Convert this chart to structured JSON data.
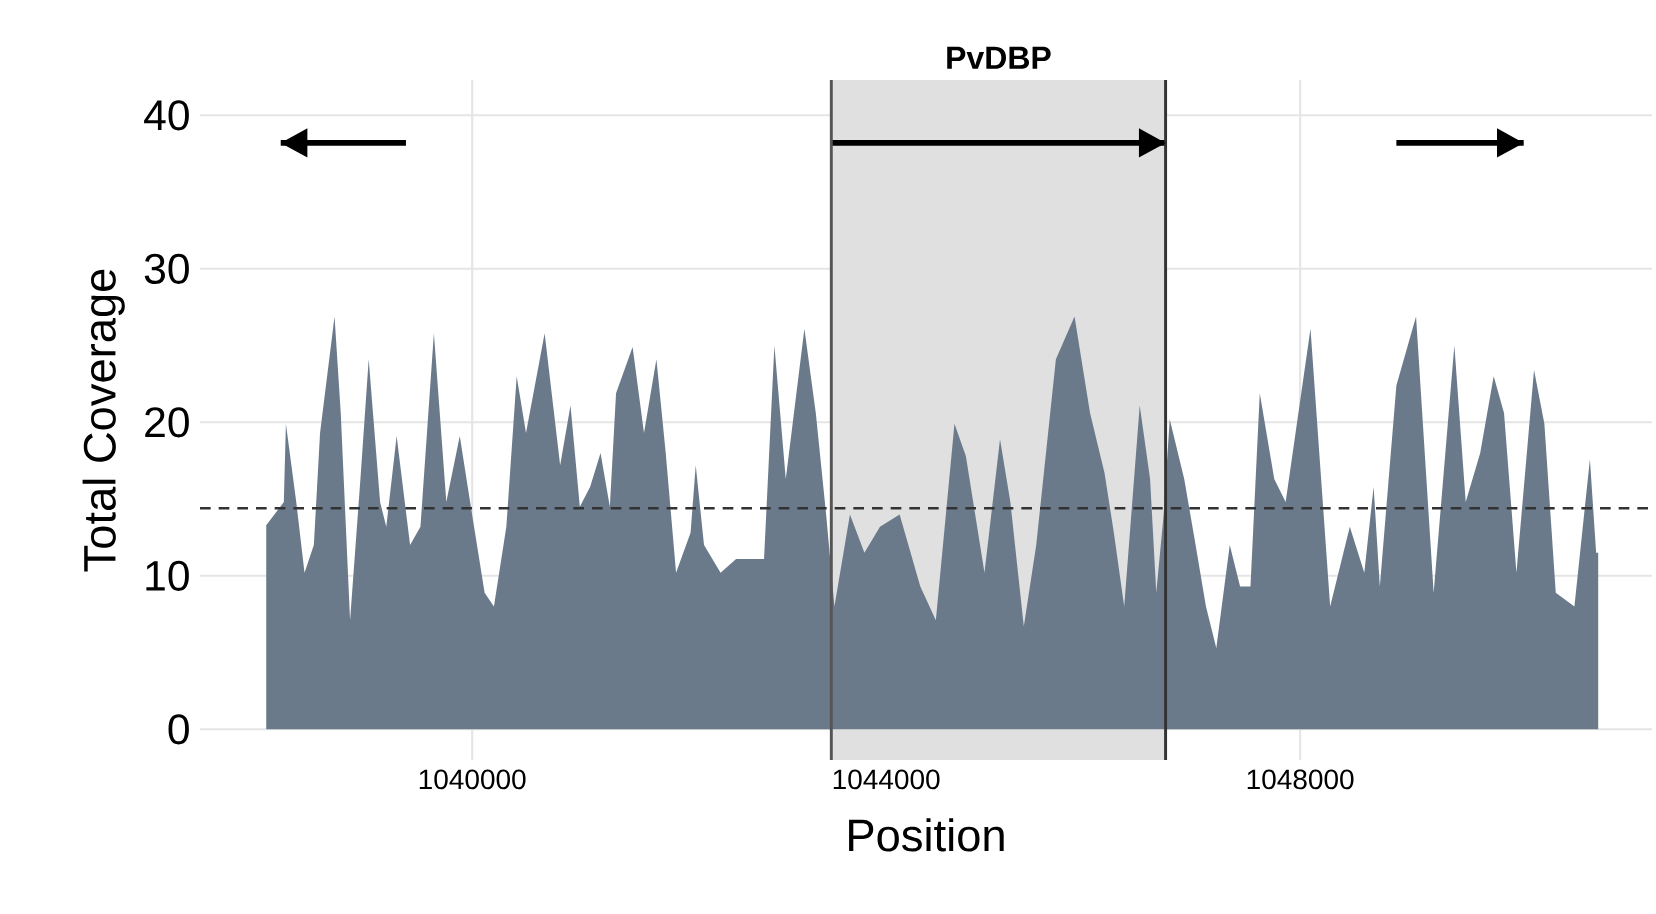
{
  "chart_data": {
    "type": "area",
    "xlabel": "Position",
    "ylabel": "Total Coverage",
    "xlim": [
      1037370,
      1051400
    ],
    "ylim": [
      -2,
      42.3
    ],
    "xticks": [
      1040000,
      1044000,
      1048000
    ],
    "yticks": [
      0,
      10,
      20,
      30,
      40
    ],
    "grid": true,
    "marker": "none",
    "series": [
      {
        "color": "#6b7a8b",
        "x": [
          1038010,
          1038180,
          1038200,
          1038300,
          1038380,
          1038470,
          1038530,
          1038670,
          1038730,
          1038820,
          1038920,
          1039000,
          1039110,
          1039170,
          1039270,
          1039400,
          1039500,
          1039630,
          1039750,
          1039880,
          1039980,
          1040120,
          1040210,
          1040330,
          1040430,
          1040520,
          1040700,
          1040850,
          1040950,
          1041040,
          1041140,
          1041240,
          1041330,
          1041390,
          1041550,
          1041660,
          1041780,
          1041870,
          1041970,
          1042110,
          1042160,
          1042240,
          1042400,
          1042550,
          1042820,
          1042920,
          1043030,
          1043210,
          1043320,
          1043420,
          1043500,
          1043650,
          1043790,
          1043940,
          1044130,
          1044330,
          1044480,
          1044660,
          1044770,
          1044950,
          1045100,
          1045200,
          1045330,
          1045450,
          1045640,
          1045820,
          1045970,
          1046110,
          1046200,
          1046300,
          1046450,
          1046550,
          1046610,
          1046680,
          1046740,
          1046880,
          1046990,
          1047090,
          1047190,
          1047320,
          1047420,
          1047520,
          1047610,
          1047750,
          1047860,
          1048100,
          1048290,
          1048480,
          1048620,
          1048710,
          1048770,
          1048930,
          1049120,
          1049290,
          1049490,
          1049600,
          1049740,
          1049870,
          1049970,
          1050090,
          1050260,
          1050360,
          1050470,
          1050650,
          1050800,
          1050860,
          1050880
        ],
        "values": [
          13.3,
          14.8,
          19.9,
          14.8,
          10.2,
          12.0,
          19.3,
          26.9,
          20.6,
          7.1,
          16.3,
          24.1,
          14.8,
          13.2,
          19.1,
          12.0,
          13.2,
          25.8,
          14.8,
          19.1,
          14.8,
          8.9,
          8.0,
          13.2,
          23.0,
          19.3,
          25.8,
          17.2,
          21.1,
          14.5,
          15.8,
          18.0,
          14.5,
          21.9,
          24.9,
          19.3,
          24.1,
          18.0,
          10.2,
          12.8,
          17.2,
          12.0,
          10.2,
          11.1,
          11.1,
          25.0,
          16.3,
          26.1,
          20.6,
          14.0,
          8.0,
          14.0,
          11.5,
          13.2,
          14.0,
          9.3,
          7.1,
          19.9,
          17.8,
          10.2,
          18.9,
          14.8,
          6.7,
          12.0,
          24.1,
          26.9,
          20.6,
          16.7,
          12.8,
          8.0,
          21.1,
          16.3,
          8.9,
          13.9,
          20.2,
          16.3,
          12.0,
          8.0,
          5.3,
          12.0,
          9.3,
          9.3,
          21.9,
          16.3,
          14.8,
          26.1,
          8.0,
          13.2,
          10.2,
          15.8,
          9.3,
          22.4,
          26.9,
          8.9,
          25.0,
          14.8,
          18.0,
          23.0,
          20.6,
          10.2,
          23.4,
          19.9,
          8.9,
          8.0,
          17.6,
          11.5,
          11.5
        ]
      },
      {
        "type": "line",
        "color": "#000000",
        "x": [
          1039360,
          1038150
        ],
        "values": [
          38.2,
          38.2
        ]
      },
      {
        "type": "line",
        "color": "#000000",
        "x": [
          1043470,
          1046700
        ],
        "values": [
          38.2,
          38.2
        ]
      },
      {
        "type": "line",
        "color": "#000000",
        "x": [
          1048930,
          1050160
        ],
        "values": [
          38.2,
          38.2
        ]
      }
    ],
    "bands": [
      {
        "axis": "x",
        "from": 1043470,
        "to": 1046700,
        "label": "PvDBP",
        "color": "#e0e0e0"
      }
    ],
    "ref_lines": [
      {
        "axis": "x",
        "value": 1043470,
        "color": "#555555"
      },
      {
        "axis": "x",
        "value": 1046700,
        "color": "#333333"
      },
      {
        "axis": "y",
        "value": 14.4,
        "color": "#333333",
        "line_style": "dashed"
      }
    ]
  }
}
